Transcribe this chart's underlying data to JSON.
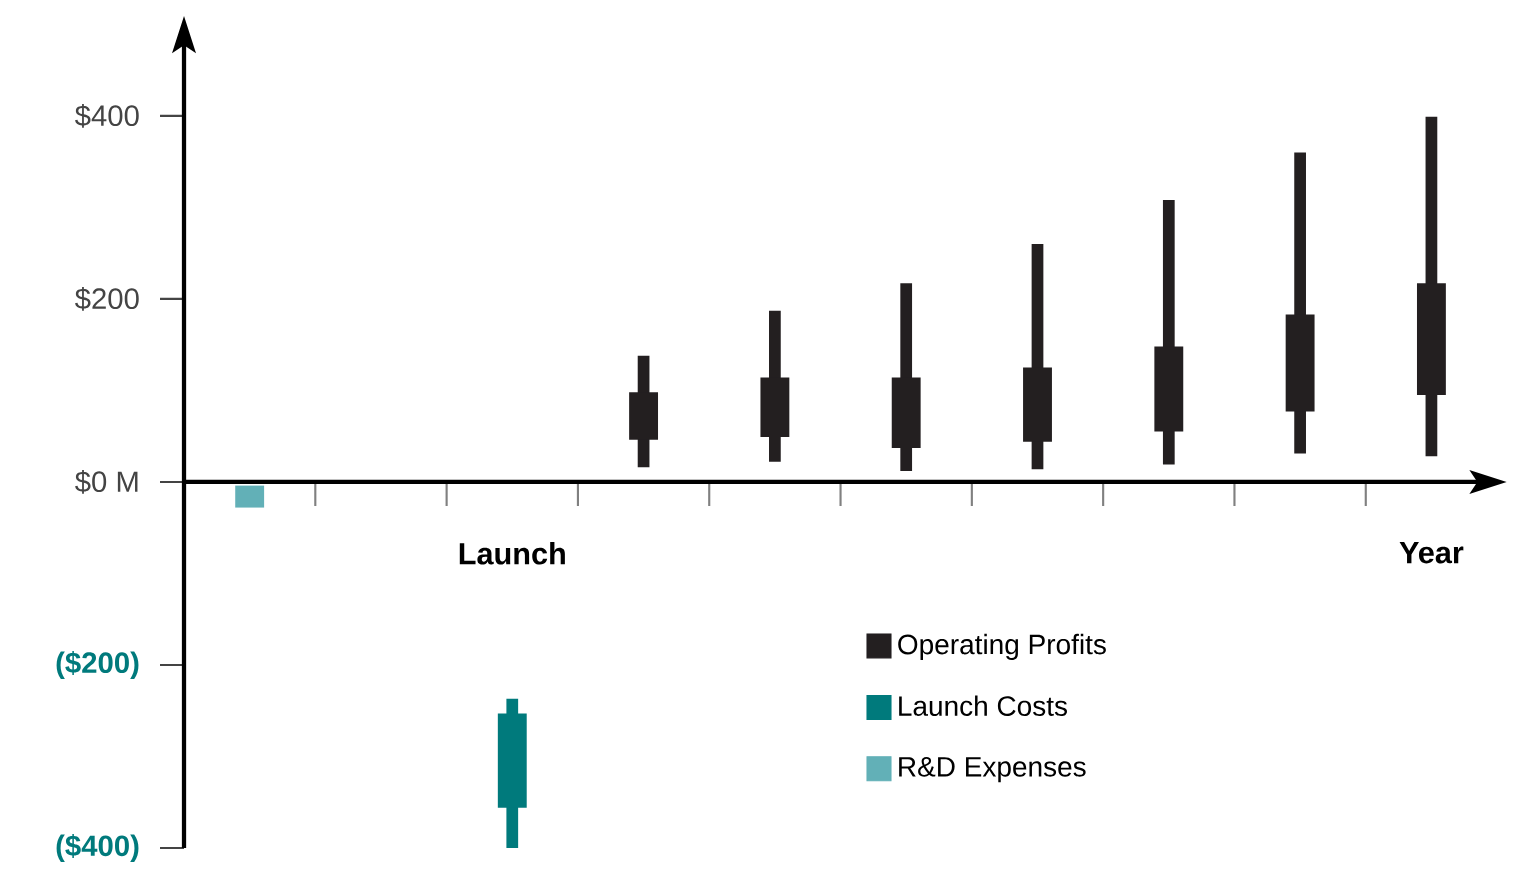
{
  "chart_data": {
    "type": "candlestick",
    "categories": [
      null,
      null,
      "Launch",
      null,
      null,
      null,
      null,
      null,
      null,
      "Year"
    ],
    "ylim": [
      -400,
      480
    ],
    "yticks": [
      {
        "value": -400,
        "label": "($400)"
      },
      {
        "value": -200,
        "label": "($200)"
      },
      {
        "value": 0,
        "label": "$0 M"
      },
      {
        "value": 200,
        "label": "$200"
      },
      {
        "value": 400,
        "label": "$400"
      }
    ],
    "grid": false,
    "legend": "bottom right",
    "series": [
      {
        "name": "Operating Profits",
        "color": "#231f20",
        "ohlc": [
          null,
          null,
          null,
          [
            46,
            138,
            16,
            98
          ],
          [
            49,
            187,
            22,
            114
          ],
          [
            37,
            217,
            12,
            114
          ],
          [
            44,
            260,
            14,
            125
          ],
          [
            55,
            308,
            19,
            148
          ],
          [
            77,
            360,
            31,
            183
          ],
          [
            95,
            399,
            28,
            217
          ]
        ]
      },
      {
        "name": "Launch Costs",
        "color": "#007a7c",
        "ohlc": [
          null,
          null,
          [
            -253,
            -237,
            -400,
            -356
          ],
          null,
          null,
          null,
          null,
          null,
          null,
          null
        ]
      },
      {
        "name": "R&D Expenses",
        "color": "#62b0b7",
        "ohlc": [
          [
            -4,
            -4,
            -28,
            -28
          ],
          null,
          null,
          null,
          null,
          null,
          null,
          null,
          null,
          null
        ]
      }
    ]
  }
}
